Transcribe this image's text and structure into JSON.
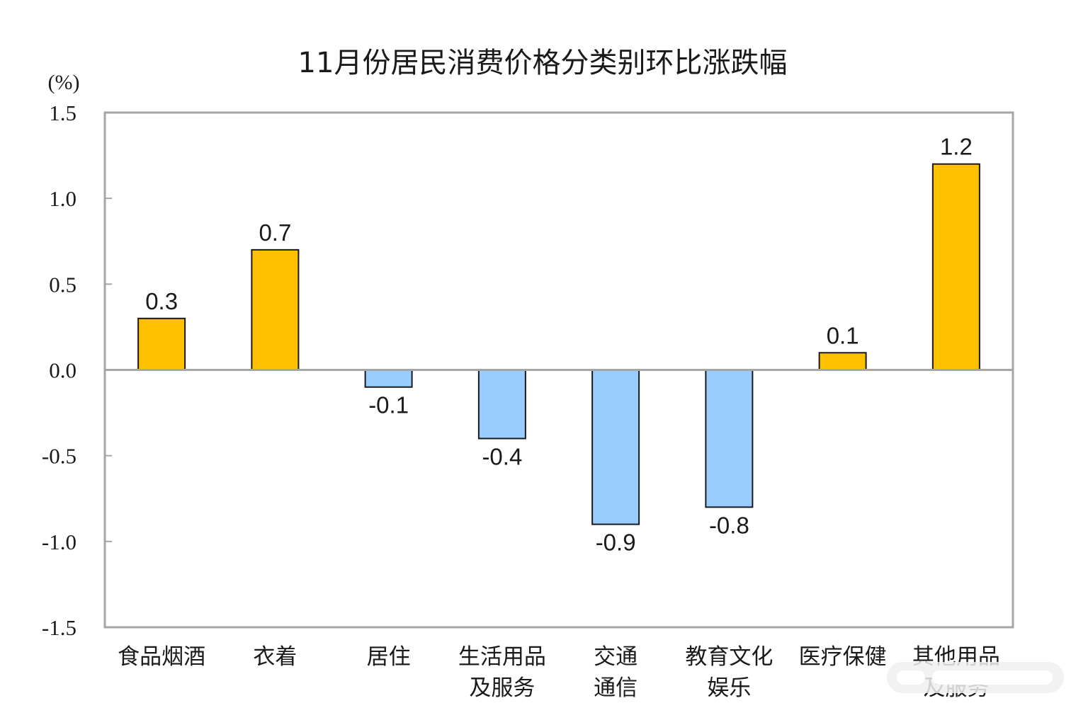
{
  "chart_data": {
    "type": "bar",
    "title": "11月份居民消费价格分类别环比涨跌幅",
    "ylabel": "(%)",
    "xlabel": "",
    "ylim": [
      -1.5,
      1.5
    ],
    "yticks": [
      1.5,
      1.0,
      0.5,
      0.0,
      -0.5,
      -1.0,
      -1.5
    ],
    "ytick_labels": [
      "1.5",
      "1.0",
      "0.5",
      "0.0",
      "-0.5",
      "-1.0",
      "-1.5"
    ],
    "categories": [
      [
        "食品烟酒"
      ],
      [
        "衣着"
      ],
      [
        "居住"
      ],
      [
        "生活用品",
        "及服务"
      ],
      [
        "交通",
        "通信"
      ],
      [
        "教育文化",
        "娱乐"
      ],
      [
        "医疗保健"
      ],
      [
        "其他用品",
        "及服务"
      ]
    ],
    "values": [
      0.3,
      0.7,
      -0.1,
      -0.4,
      -0.9,
      -0.8,
      0.1,
      1.2
    ],
    "value_labels": [
      "0.3",
      "0.7",
      "-0.1",
      "-0.4",
      "-0.9",
      "-0.8",
      "0.1",
      "1.2"
    ],
    "grid": false,
    "legend": "none",
    "colors": {
      "positive": "#ffc000",
      "negative": "#99ccff",
      "bar_edge": "#1a1a1a",
      "frame": "#a6a6a6",
      "zero_line": "#a6a6a6"
    }
  }
}
